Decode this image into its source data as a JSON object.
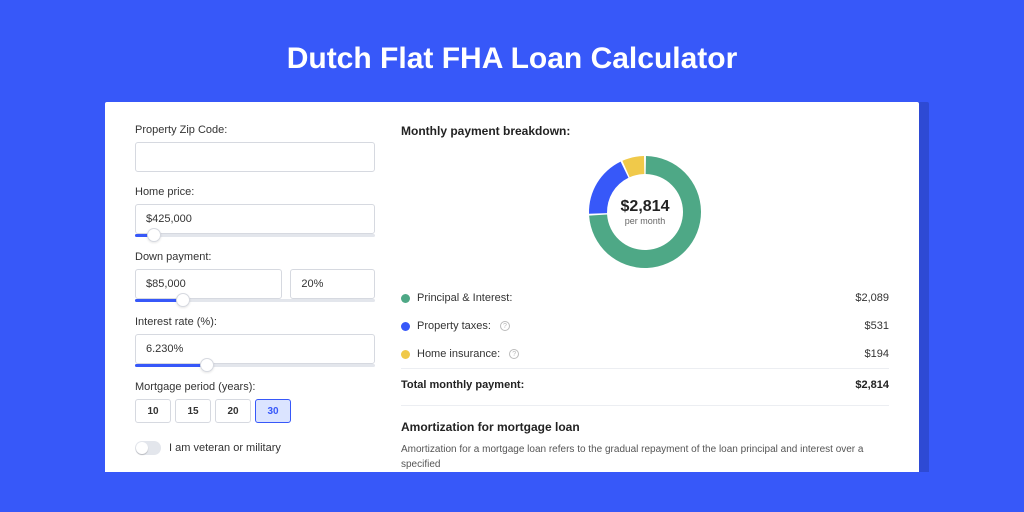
{
  "page": {
    "title": "Dutch Flat FHA Loan Calculator"
  },
  "colors": {
    "accent": "#3758f9",
    "principal": "#4ea886",
    "taxes": "#3758f9",
    "insurance": "#f0c94a"
  },
  "form": {
    "zip": {
      "label": "Property Zip Code:",
      "value": ""
    },
    "home_price": {
      "label": "Home price:",
      "value": "$425,000",
      "slider_fill_pct": 8
    },
    "down_payment": {
      "label": "Down payment:",
      "amount": "$85,000",
      "percent": "20%",
      "slider_fill_pct": 20
    },
    "interest_rate": {
      "label": "Interest rate (%):",
      "value": "6.230%",
      "slider_fill_pct": 30
    },
    "mortgage_period": {
      "label": "Mortgage period (years):",
      "options": [
        "10",
        "15",
        "20",
        "30"
      ],
      "selected": "30"
    },
    "veteran": {
      "label": "I am veteran or military",
      "on": false
    }
  },
  "breakdown": {
    "title": "Monthly payment breakdown:",
    "donut": {
      "type": "donut",
      "center_value": "$2,814",
      "center_label": "per month",
      "slices": [
        {
          "key": "principal",
          "value": 2089,
          "color": "#4ea886"
        },
        {
          "key": "taxes",
          "value": 531,
          "color": "#3758f9"
        },
        {
          "key": "insurance",
          "value": 194,
          "color": "#f0c94a"
        }
      ],
      "ring_width": 18,
      "gap_deg": 2
    },
    "rows": [
      {
        "label": "Principal & Interest:",
        "amount": "$2,089",
        "color": "#4ea886",
        "info": false
      },
      {
        "label": "Property taxes:",
        "amount": "$531",
        "color": "#3758f9",
        "info": true
      },
      {
        "label": "Home insurance:",
        "amount": "$194",
        "color": "#f0c94a",
        "info": true
      }
    ],
    "total": {
      "label": "Total monthly payment:",
      "amount": "$2,814"
    }
  },
  "amortization": {
    "title": "Amortization for mortgage loan",
    "text": "Amortization for a mortgage loan refers to the gradual repayment of the loan principal and interest over a specified"
  }
}
